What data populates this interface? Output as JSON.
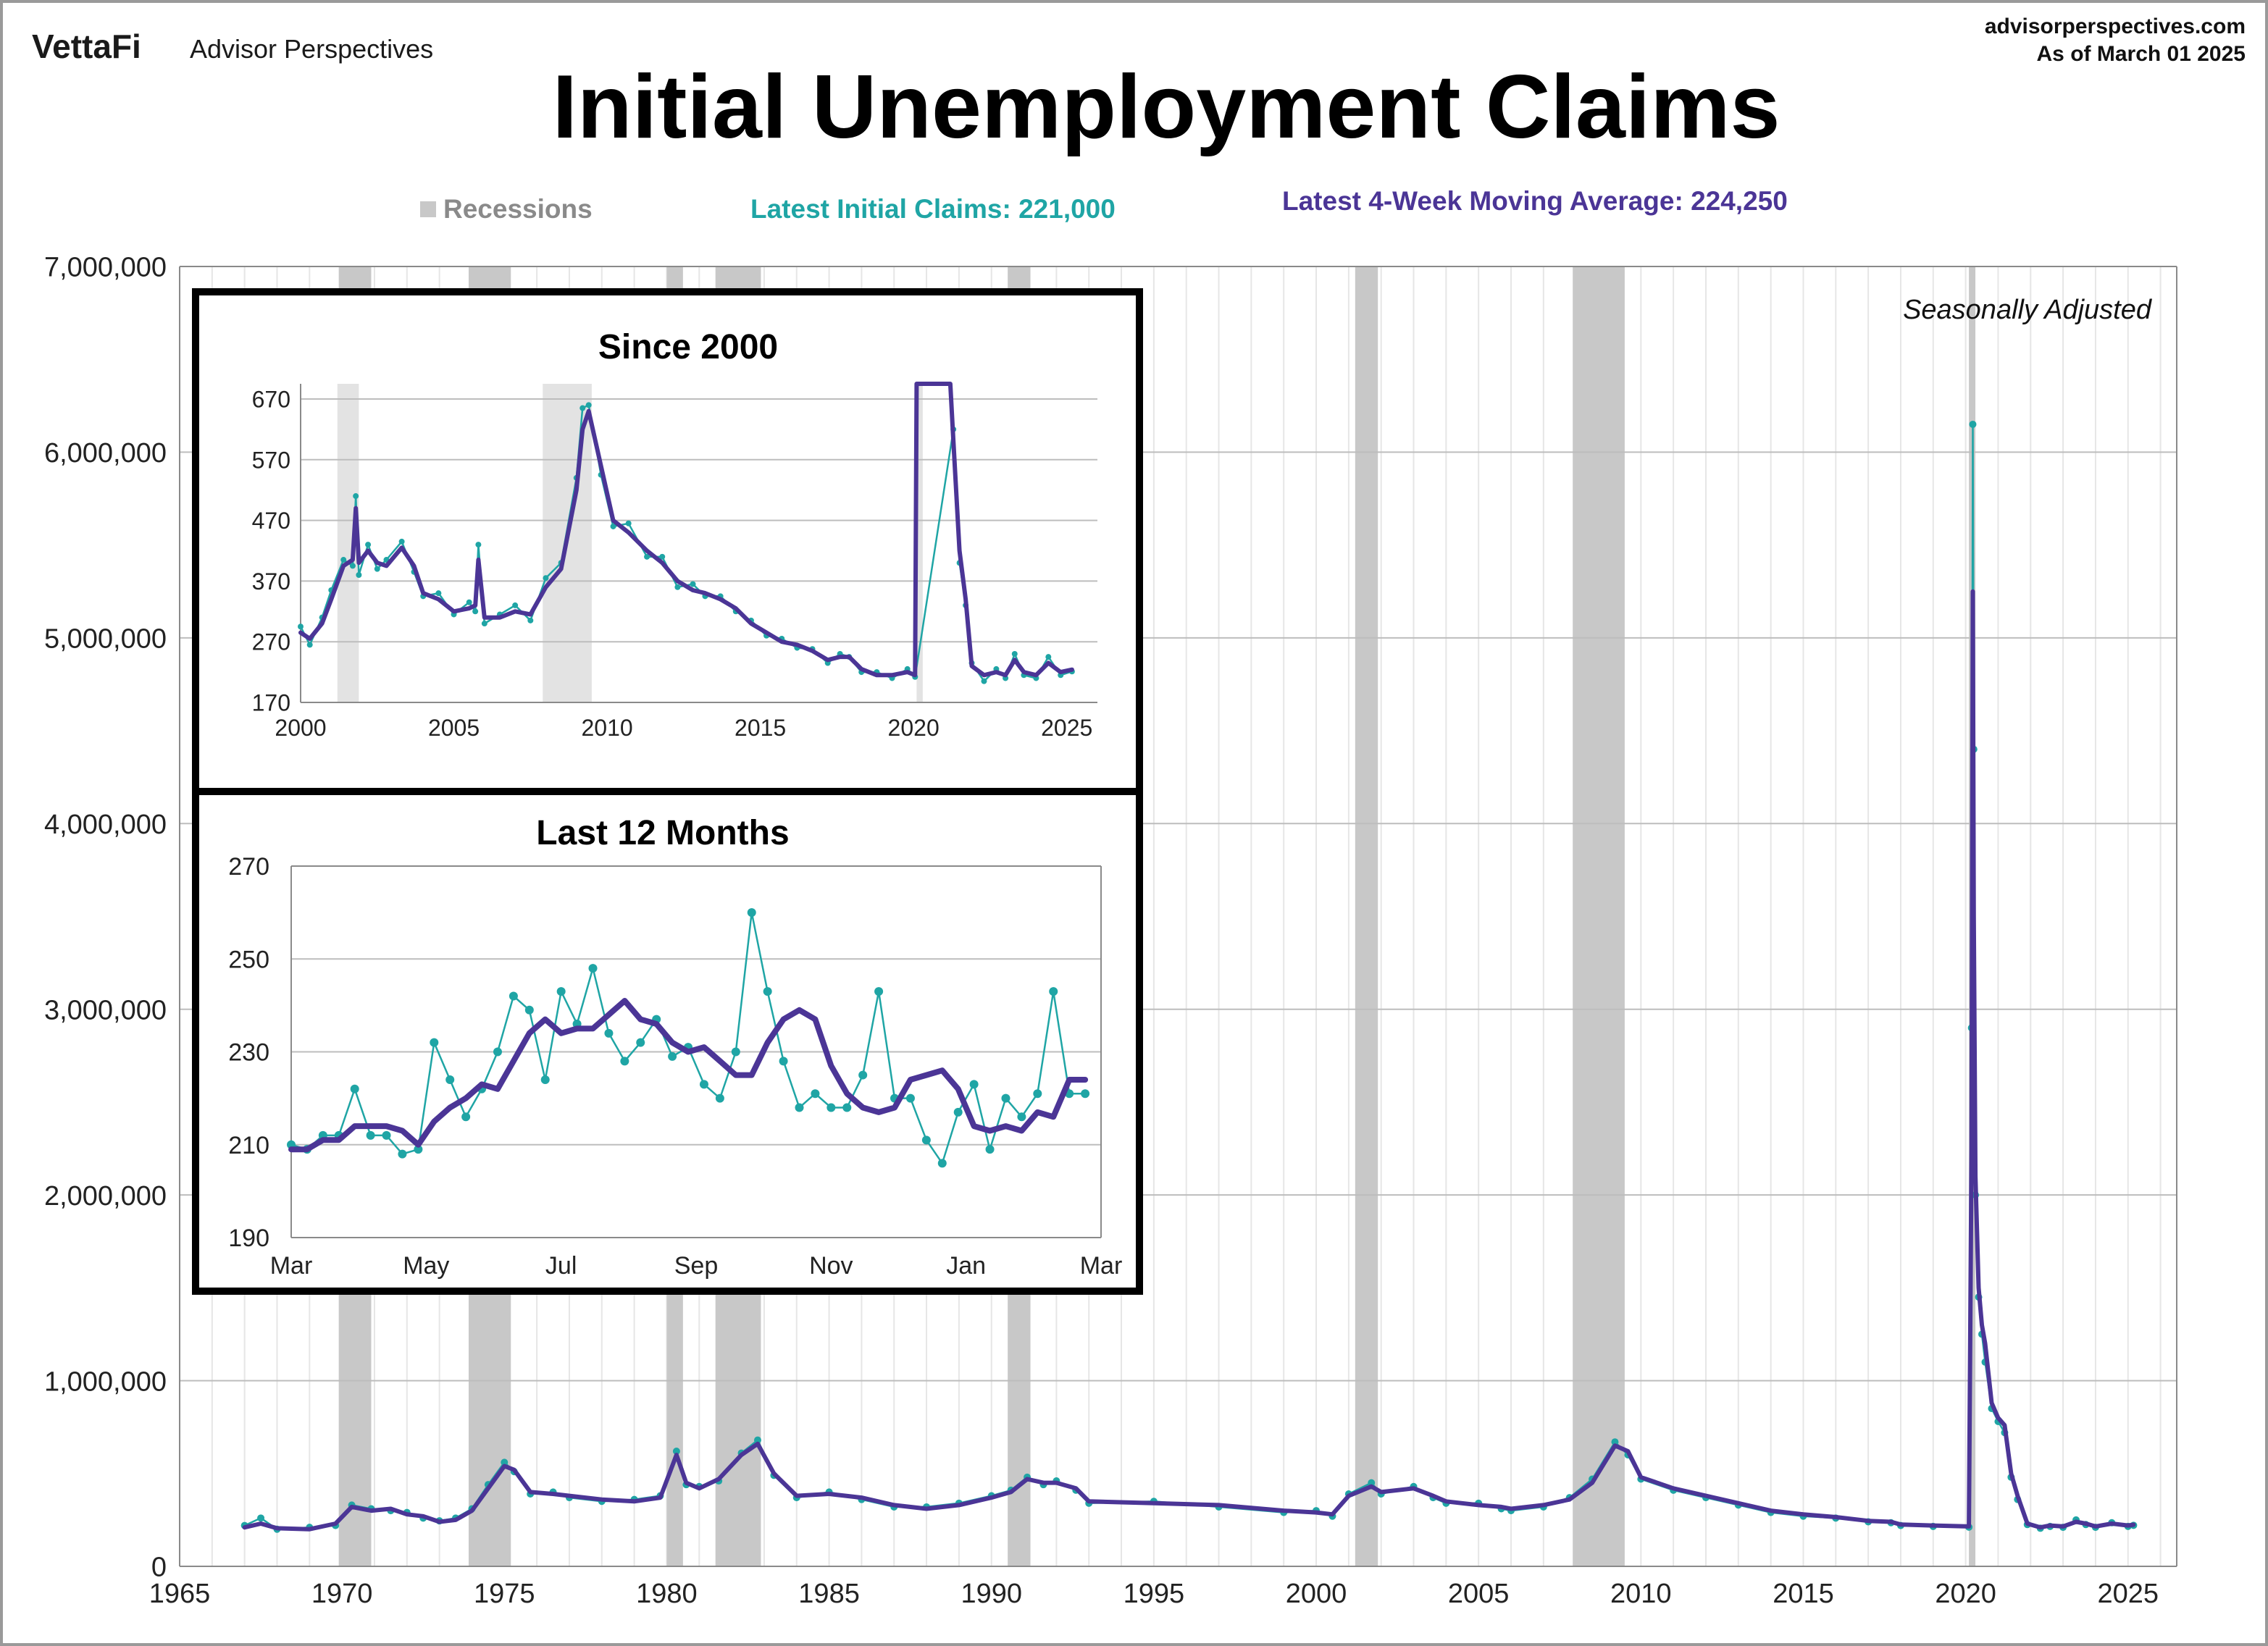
{
  "header": {
    "brand": "VettaFi",
    "brand_sub": "Advisor Perspectives",
    "site": "advisorperspectives.com",
    "as_of": "As of March 01 2025",
    "title": "Initial Unemployment Claims"
  },
  "legend": {
    "recessions": "Recessions",
    "latest_claims": "Latest Initial Claims: 221,000",
    "latest_ma": "Latest 4-Week Moving Average: 224,250"
  },
  "colors": {
    "claims": "#1fa5a5",
    "moving_average": "#4b3596",
    "recession": "#c8c8c8"
  },
  "chart_data": [
    {
      "id": "main",
      "type": "line",
      "annotation": "Seasonally Adjusted",
      "ylim": [
        0,
        7000000
      ],
      "y_ticks": [
        0,
        1000000,
        2000000,
        3000000,
        4000000,
        5000000,
        6000000,
        7000000
      ],
      "y_tick_labels": [
        "0",
        "1,000,000",
        "2,000,000",
        "3,000,000",
        "4,000,000",
        "5,000,000",
        "6,000,000",
        "7,000,000"
      ],
      "xlim": [
        1965,
        2026.5
      ],
      "x_ticks": [
        1965,
        1970,
        1975,
        1980,
        1985,
        1990,
        1995,
        2000,
        2005,
        2010,
        2015,
        2020,
        2025
      ],
      "recessions": [
        [
          1969.9,
          1970.9
        ],
        [
          1973.9,
          1975.2
        ],
        [
          1980.0,
          1980.5
        ],
        [
          1981.5,
          1982.9
        ],
        [
          1990.5,
          1991.2
        ],
        [
          2001.2,
          2001.9
        ],
        [
          2007.9,
          2009.5
        ],
        [
          2020.1,
          2020.3
        ]
      ],
      "series": [
        {
          "name": "4-Week Moving Average",
          "x": [
            1967.0,
            1967.5,
            1968.0,
            1969.0,
            1969.8,
            1970.3,
            1970.9,
            1971.5,
            1972.0,
            1972.5,
            1973.0,
            1973.5,
            1974.0,
            1974.5,
            1975.0,
            1975.3,
            1975.8,
            1976.5,
            1977.0,
            1978.0,
            1979.0,
            1979.8,
            1980.3,
            1980.6,
            1981.0,
            1981.6,
            1982.3,
            1982.8,
            1983.3,
            1984.0,
            1985.0,
            1986.0,
            1987.0,
            1988.0,
            1989.0,
            1990.0,
            1990.6,
            1991.1,
            1991.6,
            1992.0,
            1992.6,
            1993.0,
            1995.0,
            1997.0,
            1999.0,
            2000.0,
            2000.5,
            2001.0,
            2001.7,
            2002.0,
            2003.0,
            2003.6,
            2004.0,
            2005.0,
            2005.7,
            2006.0,
            2007.0,
            2007.8,
            2008.5,
            2009.2,
            2009.6,
            2010.0,
            2011.0,
            2012.0,
            2013.0,
            2014.0,
            2015.0,
            2016.0,
            2017.0,
            2017.7,
            2018.0,
            2019.0,
            2020.1,
            2020.18,
            2020.22,
            2020.25,
            2020.3,
            2020.4,
            2020.5,
            2020.6,
            2020.8,
            2021.0,
            2021.2,
            2021.4,
            2021.6,
            2021.9,
            2022.3,
            2022.6,
            2023.0,
            2023.4,
            2023.7,
            2024.0,
            2024.5,
            2025.0,
            2025.17
          ],
          "values": [
            210000,
            230000,
            205000,
            200000,
            230000,
            320000,
            300000,
            310000,
            280000,
            270000,
            240000,
            250000,
            300000,
            420000,
            540000,
            520000,
            400000,
            390000,
            380000,
            360000,
            350000,
            370000,
            600000,
            450000,
            420000,
            470000,
            600000,
            660000,
            500000,
            380000,
            390000,
            370000,
            330000,
            310000,
            330000,
            370000,
            400000,
            470000,
            450000,
            450000,
            420000,
            350000,
            340000,
            330000,
            300000,
            290000,
            280000,
            380000,
            430000,
            400000,
            420000,
            380000,
            350000,
            330000,
            320000,
            310000,
            330000,
            360000,
            450000,
            650000,
            620000,
            480000,
            420000,
            380000,
            340000,
            300000,
            280000,
            265000,
            245000,
            240000,
            225000,
            220000,
            215000,
            2250000,
            5250000,
            3500000,
            2100000,
            1500000,
            1300000,
            1200000,
            880000,
            800000,
            760000,
            500000,
            380000,
            230000,
            210000,
            220000,
            215000,
            240000,
            230000,
            215000,
            230000,
            220000,
            224250
          ]
        },
        {
          "name": "Initial Claims",
          "x": [
            1967.0,
            1967.5,
            1968.0,
            1969.0,
            1969.8,
            1970.3,
            1970.9,
            1971.5,
            1972.0,
            1972.5,
            1973.0,
            1973.5,
            1974.0,
            1974.5,
            1975.0,
            1975.3,
            1975.8,
            1976.5,
            1977.0,
            1978.0,
            1979.0,
            1979.8,
            1980.3,
            1980.6,
            1981.0,
            1981.6,
            1982.3,
            1982.8,
            1983.3,
            1984.0,
            1985.0,
            1986.0,
            1987.0,
            1988.0,
            1989.0,
            1990.0,
            1990.6,
            1991.1,
            1991.6,
            1992.0,
            1992.6,
            1993.0,
            1995.0,
            1997.0,
            1999.0,
            2000.0,
            2000.5,
            2001.0,
            2001.7,
            2002.0,
            2003.0,
            2003.6,
            2004.0,
            2005.0,
            2005.7,
            2006.0,
            2007.0,
            2007.8,
            2008.5,
            2009.2,
            2009.6,
            2010.0,
            2011.0,
            2012.0,
            2013.0,
            2014.0,
            2015.0,
            2016.0,
            2017.0,
            2017.7,
            2018.0,
            2019.0,
            2020.1,
            2020.18,
            2020.22,
            2020.25,
            2020.3,
            2020.4,
            2020.5,
            2020.6,
            2020.8,
            2021.0,
            2021.2,
            2021.4,
            2021.6,
            2021.9,
            2022.3,
            2022.6,
            2023.0,
            2023.4,
            2023.7,
            2024.0,
            2024.5,
            2025.0,
            2025.17
          ],
          "values": [
            220000,
            260000,
            200000,
            210000,
            220000,
            330000,
            310000,
            300000,
            290000,
            260000,
            245000,
            260000,
            310000,
            440000,
            560000,
            510000,
            390000,
            400000,
            370000,
            350000,
            360000,
            380000,
            620000,
            440000,
            430000,
            460000,
            610000,
            680000,
            490000,
            370000,
            400000,
            360000,
            320000,
            320000,
            340000,
            380000,
            410000,
            480000,
            440000,
            460000,
            410000,
            340000,
            350000,
            320000,
            290000,
            300000,
            270000,
            390000,
            450000,
            390000,
            430000,
            370000,
            340000,
            340000,
            310000,
            300000,
            320000,
            370000,
            470000,
            670000,
            600000,
            470000,
            410000,
            370000,
            330000,
            290000,
            270000,
            260000,
            240000,
            235000,
            220000,
            215000,
            211000,
            2900000,
            6150000,
            4400000,
            2000000,
            1450000,
            1250000,
            1100000,
            850000,
            780000,
            720000,
            480000,
            360000,
            225000,
            205000,
            215000,
            210000,
            250000,
            225000,
            210000,
            235000,
            215000,
            221000
          ]
        }
      ]
    },
    {
      "id": "since-2000",
      "type": "line",
      "title": "Since 2000",
      "ylim": [
        170,
        695
      ],
      "y_ticks": [
        170,
        270,
        370,
        470,
        570,
        670
      ],
      "xlim": [
        2000,
        2026
      ],
      "x_ticks": [
        2000,
        2005,
        2010,
        2015,
        2020,
        2025
      ],
      "recessions": [
        [
          2001.2,
          2001.9
        ],
        [
          2007.9,
          2009.5
        ],
        [
          2020.1,
          2020.3
        ]
      ],
      "series": [
        {
          "name": "4-Week Moving Average",
          "x": [
            2000.0,
            2000.3,
            2000.7,
            2001.0,
            2001.4,
            2001.7,
            2001.8,
            2001.9,
            2002.2,
            2002.5,
            2002.8,
            2003.3,
            2003.7,
            2004.0,
            2004.5,
            2005.0,
            2005.5,
            2005.7,
            2005.8,
            2006.0,
            2006.5,
            2007.0,
            2007.5,
            2008.0,
            2008.5,
            2009.0,
            2009.2,
            2009.4,
            2009.8,
            2010.2,
            2010.7,
            2011.3,
            2011.8,
            2012.3,
            2012.8,
            2013.2,
            2013.7,
            2014.2,
            2014.7,
            2015.2,
            2015.7,
            2016.2,
            2016.7,
            2017.2,
            2017.6,
            2017.9,
            2018.3,
            2018.8,
            2019.3,
            2019.8,
            2020.05,
            2020.1,
            2020.2,
            2021.2,
            2021.3,
            2021.5,
            2021.7,
            2021.9,
            2022.3,
            2022.7,
            2023.0,
            2023.3,
            2023.6,
            2024.0,
            2024.4,
            2024.8,
            2025.17
          ],
          "values": [
            285,
            275,
            300,
            340,
            395,
            405,
            490,
            400,
            420,
            400,
            395,
            425,
            395,
            350,
            340,
            320,
            325,
            330,
            405,
            310,
            310,
            320,
            315,
            360,
            390,
            520,
            620,
            650,
            560,
            470,
            450,
            420,
            400,
            370,
            355,
            350,
            340,
            325,
            300,
            285,
            270,
            265,
            255,
            240,
            245,
            245,
            225,
            215,
            215,
            220,
            215,
            695,
            695,
            695,
            600,
            420,
            340,
            230,
            215,
            220,
            215,
            240,
            220,
            215,
            235,
            220,
            224
          ]
        },
        {
          "name": "Initial Claims",
          "x": [
            2000.0,
            2000.3,
            2000.7,
            2001.0,
            2001.4,
            2001.7,
            2001.8,
            2001.9,
            2002.2,
            2002.5,
            2002.8,
            2003.3,
            2003.7,
            2004.0,
            2004.5,
            2005.0,
            2005.5,
            2005.7,
            2005.8,
            2006.0,
            2006.5,
            2007.0,
            2007.5,
            2008.0,
            2008.5,
            2009.0,
            2009.2,
            2009.4,
            2009.8,
            2010.2,
            2010.7,
            2011.3,
            2011.8,
            2012.3,
            2012.8,
            2013.2,
            2013.7,
            2014.2,
            2014.7,
            2015.2,
            2015.7,
            2016.2,
            2016.7,
            2017.2,
            2017.6,
            2017.9,
            2018.3,
            2018.8,
            2019.3,
            2019.8,
            2020.05,
            2021.3,
            2021.5,
            2021.7,
            2021.9,
            2022.3,
            2022.7,
            2023.0,
            2023.3,
            2023.6,
            2024.0,
            2024.4,
            2024.8,
            2025.17
          ],
          "values": [
            295,
            265,
            310,
            355,
            405,
            395,
            510,
            380,
            430,
            390,
            405,
            435,
            385,
            345,
            350,
            315,
            335,
            320,
            430,
            300,
            315,
            330,
            305,
            375,
            400,
            540,
            655,
            660,
            545,
            460,
            465,
            410,
            410,
            360,
            365,
            345,
            345,
            320,
            305,
            280,
            275,
            260,
            258,
            235,
            250,
            245,
            220,
            220,
            210,
            225,
            212,
            620,
            400,
            330,
            235,
            205,
            225,
            210,
            250,
            215,
            210,
            245,
            215,
            221
          ]
        }
      ]
    },
    {
      "id": "last-12-months",
      "type": "line",
      "title": "Last 12 Months",
      "ylim": [
        190,
        270
      ],
      "y_ticks": [
        190,
        210,
        230,
        250,
        270
      ],
      "x_tick_labels": [
        "Mar",
        "May",
        "Jul",
        "Sep",
        "Nov",
        "Jan",
        "Mar"
      ],
      "xlim": [
        0,
        51
      ],
      "series": [
        {
          "name": "4-Week Moving Average",
          "x": [
            0,
            1,
            2,
            3,
            4,
            5,
            6,
            7,
            8,
            9,
            10,
            11,
            12,
            13,
            14,
            15,
            16,
            17,
            18,
            19,
            20,
            21,
            22,
            23,
            24,
            25,
            26,
            27,
            28,
            29,
            30,
            31,
            32,
            33,
            34,
            35,
            36,
            37,
            38,
            39,
            40,
            41,
            42,
            43,
            44,
            45,
            46,
            47,
            48,
            49,
            50
          ],
          "values": [
            209,
            209,
            211,
            211,
            214,
            214,
            214,
            213,
            210,
            215,
            218,
            220,
            223,
            222,
            228,
            234,
            237,
            234,
            235,
            235,
            238,
            241,
            237,
            236,
            232,
            230,
            231,
            228,
            225,
            225,
            232,
            237,
            239,
            237,
            227,
            221,
            218,
            217,
            218,
            224,
            225,
            226,
            222,
            214,
            213,
            214,
            213,
            217,
            216,
            224,
            224
          ]
        },
        {
          "name": "Initial Claims",
          "x": [
            0,
            1,
            2,
            3,
            4,
            5,
            6,
            7,
            8,
            9,
            10,
            11,
            12,
            13,
            14,
            15,
            16,
            17,
            18,
            19,
            20,
            21,
            22,
            23,
            24,
            25,
            26,
            27,
            28,
            29,
            30,
            31,
            32,
            33,
            34,
            35,
            36,
            37,
            38,
            39,
            40,
            41,
            42,
            43,
            44,
            45,
            46,
            47,
            48,
            49,
            50
          ],
          "values": [
            210,
            209,
            212,
            212,
            222,
            212,
            212,
            208,
            209,
            232,
            224,
            216,
            222,
            230,
            242,
            239,
            224,
            243,
            236,
            248,
            234,
            228,
            232,
            237,
            229,
            231,
            223,
            220,
            230,
            260,
            243,
            228,
            218,
            221,
            218,
            218,
            225,
            243,
            220,
            220,
            211,
            206,
            217,
            223,
            209,
            220,
            216,
            221,
            243,
            221,
            221
          ]
        }
      ]
    }
  ]
}
